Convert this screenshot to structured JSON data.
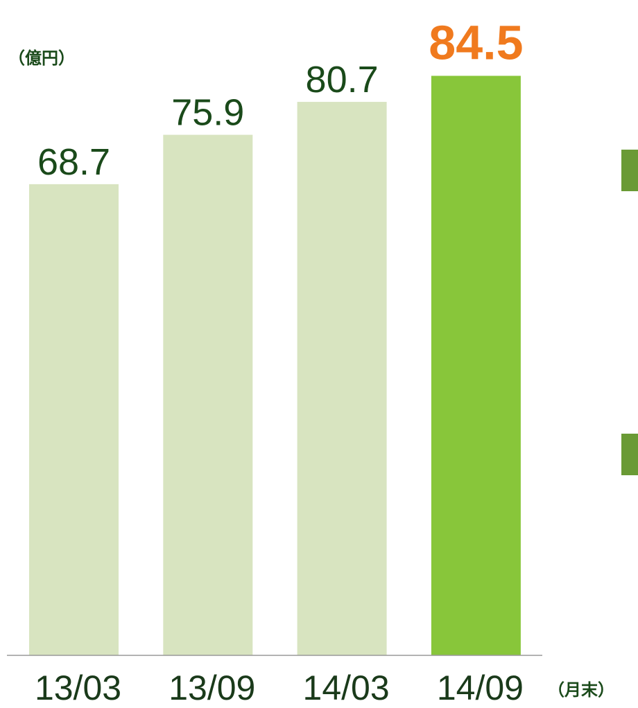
{
  "chart_data": {
    "type": "bar",
    "y_unit_label": "（億円）",
    "x_unit_label": "（月末）",
    "categories": [
      "13/03",
      "13/09",
      "14/03",
      "14/09"
    ],
    "values": [
      68.7,
      75.9,
      80.7,
      84.5
    ],
    "colors": [
      "#d8e4c0",
      "#d8e4c0",
      "#d8e4c0",
      "#88c63a"
    ],
    "label_colors": [
      "#1a4a1a",
      "#1a4a1a",
      "#1a4a1a",
      "#f07a1e"
    ],
    "highlight_index": 3,
    "ylim": [
      0,
      90
    ]
  }
}
